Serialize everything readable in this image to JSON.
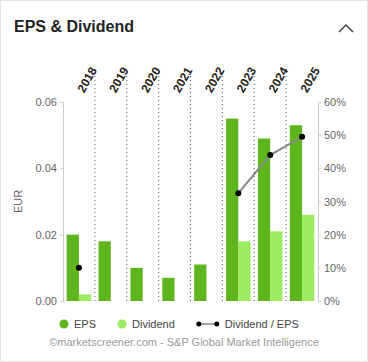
{
  "chart_data": {
    "type": "bar",
    "title": "EPS & Dividend",
    "y_label": "EUR",
    "source": "©marketscreener.com - S&P Global Market Intelligence",
    "categories": [
      "2018",
      "2019",
      "2020",
      "2021",
      "2022",
      "2023",
      "2024",
      "2025"
    ],
    "series": [
      {
        "name": "EPS",
        "type": "bar",
        "color": "#5fb51e",
        "values": [
          0.02,
          0.018,
          0.01,
          0.007,
          0.011,
          0.055,
          0.049,
          0.053
        ]
      },
      {
        "name": "Dividend",
        "type": "bar",
        "color": "#9ceb60",
        "values": [
          0.002,
          null,
          null,
          null,
          null,
          0.018,
          0.021,
          0.026
        ]
      },
      {
        "name": "Dividend / EPS",
        "type": "line",
        "axis": "y2",
        "color": "#000000",
        "marker": "circle",
        "line_style": "solid",
        "values": [
          10,
          null,
          null,
          null,
          null,
          32.5,
          44,
          49.5
        ]
      }
    ],
    "ylim": [
      0,
      0.06
    ],
    "yticks": [
      {
        "value": 0,
        "label": "0.00"
      },
      {
        "value": 0.02,
        "label": "0.02"
      },
      {
        "value": 0.04,
        "label": "0.04"
      },
      {
        "value": 0.06,
        "label": "0.06"
      }
    ],
    "y2lim": [
      0,
      60
    ],
    "y2ticks": [
      {
        "value": 0,
        "label": "0%"
      },
      {
        "value": 10,
        "label": "10%"
      },
      {
        "value": 20,
        "label": "20%"
      },
      {
        "value": 30,
        "label": "30%"
      },
      {
        "value": 40,
        "label": "40%"
      },
      {
        "value": 50,
        "label": "50%"
      },
      {
        "value": 60,
        "label": "60%"
      }
    ],
    "grid": false,
    "legend": "bottom"
  }
}
